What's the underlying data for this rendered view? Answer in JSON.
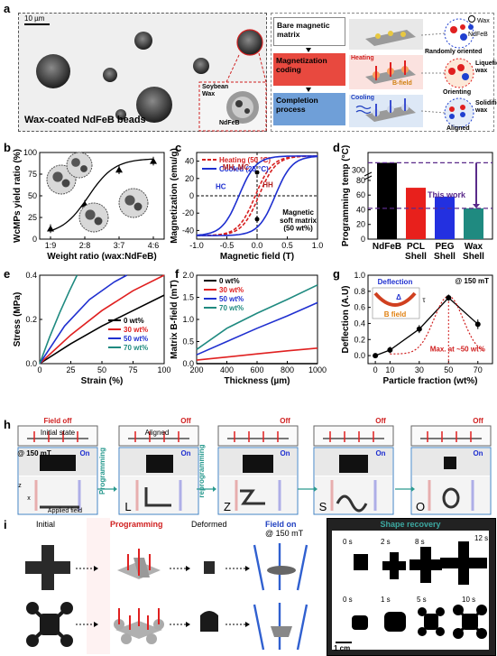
{
  "panels": {
    "a": {
      "letter": "a",
      "scalebar": "10 µm",
      "caption": "Wax-coated NdFeB beads",
      "inset_labels": [
        "Soybean",
        "Wax",
        "NdFeB"
      ],
      "steps": [
        {
          "title": "Bare magnetic matrix",
          "color": "#ffffff",
          "right_label": "Randomly oriented",
          "extra": ""
        },
        {
          "title": "Magnetization coding",
          "color": "#e8493f",
          "right_label": "Liquefied wax",
          "extra": "Heating",
          "extra2": "B-field",
          "extra3": "Orienting"
        },
        {
          "title": "Completion process",
          "color": "#6f9fd8",
          "right_label": "Solidified wax",
          "extra": "Cooling",
          "extra3": "Aligned"
        }
      ],
      "legend": [
        "Wax",
        "NdFeB"
      ],
      "colors": {
        "wax": "#ffffff",
        "ndfeb_red": "#e02020",
        "ndfeb_blue": "#2040d0"
      }
    },
    "b": {
      "letter": "b"
    },
    "c": {
      "letter": "c"
    },
    "d": {
      "letter": "d"
    },
    "e": {
      "letter": "e"
    },
    "f": {
      "letter": "f"
    },
    "g": {
      "letter": "g"
    },
    "h": {
      "letter": "h",
      "field_off": "Field off",
      "off": "Off",
      "initial_state": "Initial state",
      "aligned": "Aligned",
      "field_strength": "@ 150 mT",
      "field_on": "Field on",
      "on": "On",
      "top": "Top",
      "front": "Front",
      "applied_field": "Applied field",
      "programming": "Programming",
      "reprogramming": "reprogramming",
      "letters": [
        "L",
        "Z",
        "S",
        "O"
      ],
      "axis_z": "z",
      "axis_x": "x"
    },
    "i": {
      "letter": "i",
      "initial": "Initial",
      "programming": "Programming",
      "deformed": "Deformed",
      "field_on": "Field on",
      "field_strength": "@ 150 mT",
      "shape_recovery": "Shape recovery",
      "times_top": [
        "0 s",
        "2 s",
        "8 s",
        "12 s"
      ],
      "times_bottom": [
        "0 s",
        "1 s",
        "5 s",
        "10 s"
      ],
      "scalebar": "1 cm"
    }
  },
  "chart_data": [
    {
      "id": "b",
      "type": "scatter",
      "xlabel": "Weight ratio (wax:NdFeB)",
      "ylabel": "WcMPs yield ratio (%)",
      "categories": [
        "1:9",
        "2:8",
        "3:7",
        "4:6"
      ],
      "ylim": [
        0,
        100
      ],
      "yticks": [
        0,
        25,
        50,
        75,
        100
      ],
      "points": [
        {
          "x": "1:9",
          "y": 12,
          "err": 5
        },
        {
          "x": "2:8",
          "y": 40,
          "err": 5
        },
        {
          "x": "3:7",
          "y": 80,
          "err": 5
        },
        {
          "x": "4:6",
          "y": 90,
          "err": 5
        }
      ],
      "fit": true
    },
    {
      "id": "c",
      "type": "line",
      "xlabel": "Magnetic field (T)",
      "ylabel": "Magnetization (emu/g)",
      "xlim": [
        -1.0,
        1.0
      ],
      "ylim": [
        -50,
        50
      ],
      "xticks": [
        -1.0,
        -0.5,
        0.0,
        0.5,
        1.0
      ],
      "yticks": [
        -40,
        -20,
        0,
        20,
        40
      ],
      "series": [
        {
          "name": "Heating (50 °C)",
          "color": "#d62020",
          "dash": true,
          "hc": 0.03,
          "mr": 3
        },
        {
          "name": "Cooled (25 °C)",
          "color": "#1e2fd0",
          "dash": false,
          "hc": 0.3,
          "mr": 27
        }
      ],
      "annotations": [
        "MH, MC",
        "HC",
        "HH",
        "Magnetic",
        "soft matrix",
        "(50 wt%)"
      ]
    },
    {
      "id": "d",
      "type": "bar",
      "ylabel": "Programming temp (°C)",
      "categories": [
        "NdFeB",
        "PCL Shell",
        "PEG Shell",
        "Wax Shell"
      ],
      "values": [
        312,
        70,
        58,
        42
      ],
      "colors": [
        "#000000",
        "#e8201c",
        "#2330e0",
        "#1f8a80"
      ],
      "yticks": [
        0,
        20,
        40,
        60,
        80
      ],
      "ytick_break_label": "300",
      "annotation": "This work"
    },
    {
      "id": "e",
      "type": "line",
      "xlabel": "Strain (%)",
      "ylabel": "Stress (MPa)",
      "xlim": [
        0,
        100
      ],
      "ylim": [
        0,
        0.4
      ],
      "xticks": [
        0,
        25,
        50,
        75,
        100
      ],
      "yticks": [
        0.0,
        0.2,
        0.4
      ],
      "series": [
        {
          "name": "0 wt%",
          "color": "#000000",
          "x": [
            0,
            25,
            50,
            75,
            100
          ],
          "y": [
            0,
            0.09,
            0.17,
            0.24,
            0.31
          ]
        },
        {
          "name": "30 wt%",
          "color": "#e02020",
          "x": [
            0,
            25,
            50,
            75,
            100
          ],
          "y": [
            0,
            0.13,
            0.24,
            0.33,
            0.4
          ]
        },
        {
          "name": "50 wt%",
          "color": "#2030d0",
          "x": [
            0,
            20,
            40,
            60,
            70
          ],
          "y": [
            0,
            0.17,
            0.29,
            0.37,
            0.4
          ]
        },
        {
          "name": "70 wt%",
          "color": "#1f8a80",
          "x": [
            0,
            8,
            16,
            24,
            30
          ],
          "y": [
            0,
            0.12,
            0.23,
            0.33,
            0.4
          ]
        }
      ]
    },
    {
      "id": "f",
      "type": "line",
      "xlabel": "Thickness (µm)",
      "ylabel": "Matrix B-field (mT)",
      "xlim": [
        200,
        1000
      ],
      "ylim": [
        0,
        2.0
      ],
      "xticks": [
        200,
        400,
        600,
        800,
        1000
      ],
      "yticks": [
        0.0,
        0.5,
        1.0,
        1.5,
        2.0
      ],
      "series": [
        {
          "name": "0 wt%",
          "color": "#000000",
          "x": [
            200,
            1000
          ],
          "y": [
            0.0,
            0.0
          ]
        },
        {
          "name": "30 wt%",
          "color": "#e02020",
          "x": [
            200,
            400,
            600,
            800,
            1000
          ],
          "y": [
            0.08,
            0.15,
            0.22,
            0.29,
            0.35
          ]
        },
        {
          "name": "50 wt%",
          "color": "#2030d0",
          "x": [
            200,
            400,
            600,
            800,
            1000
          ],
          "y": [
            0.2,
            0.5,
            0.8,
            1.08,
            1.38
          ]
        },
        {
          "name": "70 wt%",
          "color": "#1f8a80",
          "x": [
            200,
            400,
            600,
            800,
            1000
          ],
          "y": [
            0.32,
            0.8,
            1.14,
            1.45,
            1.78
          ]
        }
      ]
    },
    {
      "id": "g",
      "type": "scatter",
      "xlabel": "Particle fraction (wt%)",
      "ylabel": "Deflection (A.U)",
      "xlim": [
        -5,
        80
      ],
      "ylim": [
        -0.1,
        1.0
      ],
      "xticks": [
        0,
        10,
        30,
        50,
        70
      ],
      "yticks": [
        0.0,
        0.2,
        0.4,
        0.6,
        0.8,
        1.0
      ],
      "points": [
        {
          "x": 0,
          "y": 0.0,
          "err": 0.02
        },
        {
          "x": 10,
          "y": 0.07,
          "err": 0.04
        },
        {
          "x": 30,
          "y": 0.33,
          "err": 0.05
        },
        {
          "x": 50,
          "y": 0.72,
          "err": 0.04
        },
        {
          "x": 70,
          "y": 0.39,
          "err": 0.06
        }
      ],
      "annotations": [
        "@ 150 mT",
        "Deflection",
        "Δ",
        "τ",
        "B field",
        "Max. at ~50 wt%"
      ]
    }
  ]
}
